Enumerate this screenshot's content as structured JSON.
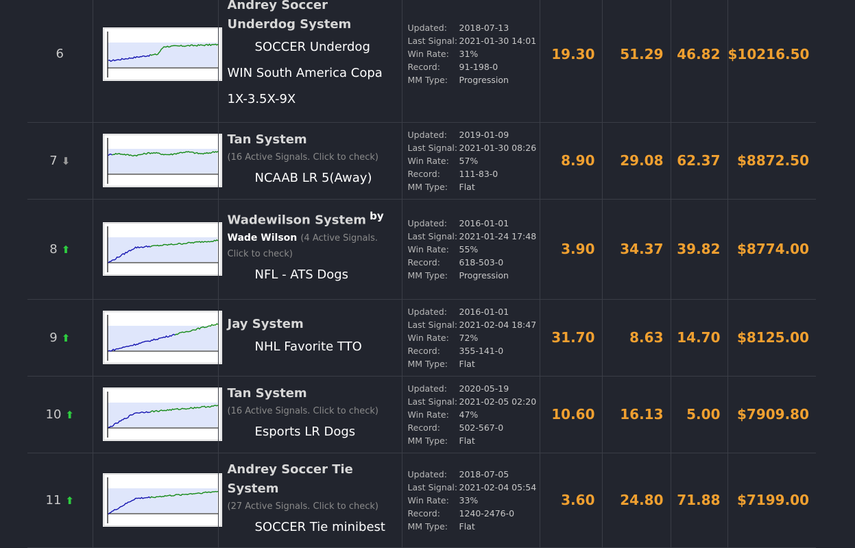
{
  "labels": {
    "updated": "Updated:",
    "last_signal": "Last Signal:",
    "win_rate": "Win Rate:",
    "record": "Record:",
    "mm_type": "MM Type:"
  },
  "colors": {
    "background": "#22252e",
    "accent_orange": "#f0a030",
    "arrow_up": "#2ecc40",
    "arrow_down": "#9a9a9a",
    "chart_blue": "#1515b0",
    "chart_green": "#168a16",
    "chart_band": "#dfe6fb"
  },
  "rows": [
    {
      "rank": "6",
      "arrow": "none",
      "arrow_glyph": "",
      "name": "Andrey Soccer Underdog System",
      "by": "",
      "author": "",
      "active": "",
      "subtitle": "SOCCER Underdog",
      "subtitle_lines": [
        "WIN South America Copa",
        "1X-3.5X-9X"
      ],
      "updated": "2018-07-13",
      "last_signal": "2021-01-30 14:01",
      "win_rate": "31%",
      "record": "91-198-0",
      "mm_type": "Progression",
      "col1": "19.30",
      "col2": "51.29",
      "col3": "46.82",
      "profit": "$10216.50"
    },
    {
      "rank": "7",
      "arrow": "down",
      "arrow_glyph": "⬇",
      "name": "Tan System",
      "by": "",
      "author": "",
      "active": "(16 Active Signals. Click to check)",
      "subtitle": "NCAAB LR 5(Away)",
      "subtitle_lines": [],
      "updated": "2019-01-09",
      "last_signal": "2021-01-30 08:26",
      "win_rate": "57%",
      "record": "111-83-0",
      "mm_type": "Flat",
      "col1": "8.90",
      "col2": "29.08",
      "col3": "62.37",
      "profit": "$8872.50"
    },
    {
      "rank": "8",
      "arrow": "up",
      "arrow_glyph": "⬆",
      "name": "Wadewilson System",
      "by": "by",
      "author": "Wade Wilson",
      "active": "(4 Active Signals. Click to check)",
      "subtitle": "NFL - ATS Dogs",
      "subtitle_lines": [],
      "updated": "2016-01-01",
      "last_signal": "2021-01-24 17:48",
      "win_rate": "55%",
      "record": "618-503-0",
      "mm_type": "Progression",
      "col1": "3.90",
      "col2": "34.37",
      "col3": "39.82",
      "profit": "$8774.00"
    },
    {
      "rank": "9",
      "arrow": "up",
      "arrow_glyph": "⬆",
      "name": "Jay System",
      "by": "",
      "author": "",
      "active": "",
      "subtitle": "NHL Favorite TTO",
      "subtitle_lines": [],
      "updated": "2016-01-01",
      "last_signal": "2021-02-04 18:47",
      "win_rate": "72%",
      "record": "355-141-0",
      "mm_type": "Flat",
      "col1": "31.70",
      "col2": "8.63",
      "col3": "14.70",
      "profit": "$8125.00"
    },
    {
      "rank": "10",
      "arrow": "up",
      "arrow_glyph": "⬆",
      "name": "Tan System",
      "by": "",
      "author": "",
      "active": "(16 Active Signals. Click to check)",
      "subtitle": "Esports LR Dogs",
      "subtitle_lines": [],
      "updated": "2020-05-19",
      "last_signal": "2021-02-05 02:20",
      "win_rate": "47%",
      "record": "502-567-0",
      "mm_type": "Flat",
      "col1": "10.60",
      "col2": "16.13",
      "col3": "5.00",
      "profit": "$7909.80"
    },
    {
      "rank": "11",
      "arrow": "up",
      "arrow_glyph": "⬆",
      "name": "Andrey Soccer Tie System",
      "by": "",
      "author": "",
      "active": "(27 Active Signals. Click to check)",
      "subtitle": "SOCCER Tie minibest",
      "subtitle_lines": [],
      "updated": "2018-07-05",
      "last_signal": "2021-02-04 05:54",
      "win_rate": "33%",
      "record": "1240-2476-0",
      "mm_type": "Flat",
      "col1": "3.60",
      "col2": "24.80",
      "col3": "71.88",
      "profit": "$7199.00"
    }
  ]
}
